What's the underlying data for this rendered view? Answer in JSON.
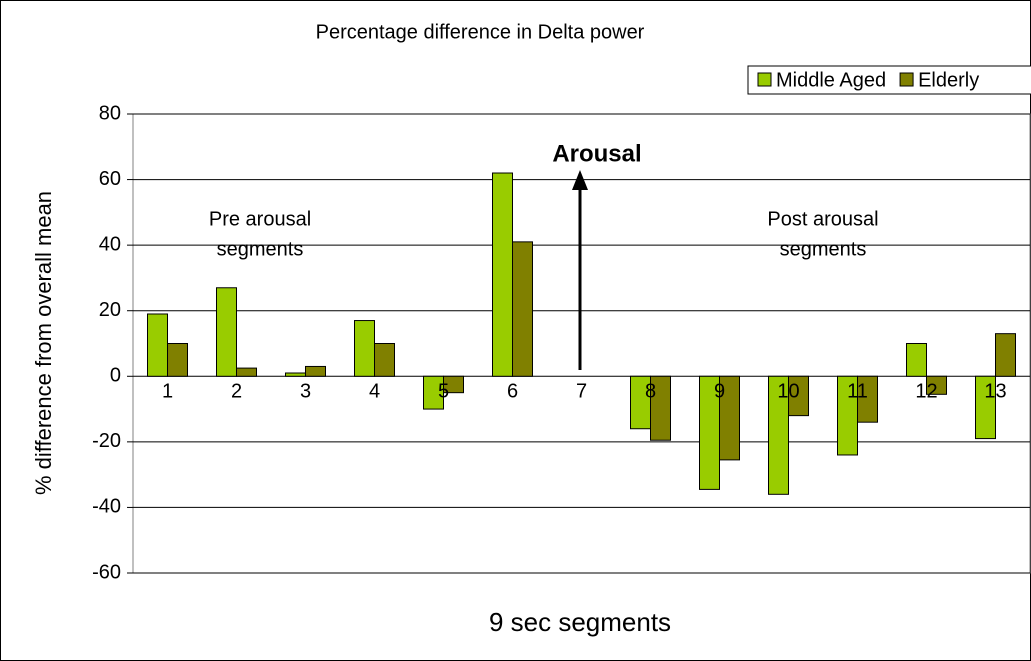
{
  "chart_data": {
    "type": "bar",
    "title": "Percentage difference in Delta power",
    "x_label": "9 sec segments",
    "y_label": "% difference from overall mean",
    "categories": [
      "1",
      "2",
      "3",
      "4",
      "5",
      "6",
      "7",
      "8",
      "9",
      "10",
      "11",
      "12",
      "13"
    ],
    "series": [
      {
        "name": "Middle Aged",
        "color": "#99cc00",
        "values": [
          19,
          27,
          1,
          17,
          -10,
          62,
          null,
          -16,
          -34.5,
          -36,
          -24,
          10,
          -19
        ]
      },
      {
        "name": "Elderly",
        "color": "#808000",
        "values": [
          10,
          2.5,
          3,
          10,
          -5,
          41,
          null,
          -19.5,
          -25.5,
          -12,
          -14,
          -5.5,
          13
        ]
      }
    ],
    "ylim": [
      -60,
      80
    ],
    "yticks": [
      -60,
      -40,
      -20,
      0,
      20,
      40,
      60,
      80
    ],
    "grid": true,
    "legend": "top-right",
    "annotations": [
      {
        "lines": [
          "Arousal"
        ]
      },
      {
        "lines": [
          "Pre arousal",
          "segments"
        ]
      },
      {
        "lines": [
          "Post arousal",
          "segments"
        ]
      }
    ]
  }
}
